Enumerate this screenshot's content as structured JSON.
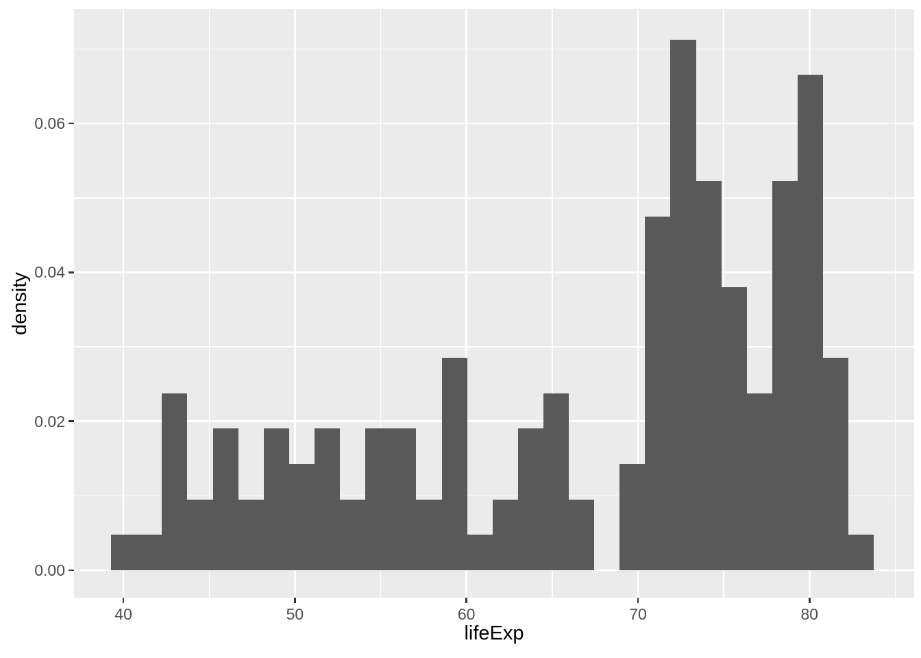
{
  "chart_data": {
    "type": "bar",
    "subtype": "density-histogram",
    "title": "",
    "xlabel": "lifeExp",
    "ylabel": "density",
    "x_tick_labels": [
      "40",
      "50",
      "60",
      "70",
      "80"
    ],
    "x_tick_values": [
      40,
      50,
      60,
      70,
      80
    ],
    "x_minor_ticks": [
      45,
      55,
      65,
      75,
      85
    ],
    "y_tick_labels": [
      "0.00",
      "0.02",
      "0.04",
      "0.06"
    ],
    "y_tick_values": [
      0.0,
      0.02,
      0.04,
      0.06
    ],
    "y_minor_ticks": [
      0.01,
      0.03,
      0.05,
      0.07
    ],
    "xlim": [
      37.12,
      86.1
    ],
    "ylim": [
      -0.0037,
      0.0754
    ],
    "grid": true,
    "legend": false,
    "bins": {
      "start": 39.284,
      "width": 1.4824,
      "counts": [
        1,
        1,
        5,
        2,
        4,
        2,
        4,
        3,
        4,
        2,
        4,
        4,
        2,
        6,
        1,
        2,
        4,
        5,
        2,
        0,
        3,
        10,
        15,
        11,
        8,
        5,
        11,
        14,
        6,
        1
      ],
      "densities": [
        0.00475,
        0.00475,
        0.02376,
        0.0095,
        0.01901,
        0.0095,
        0.01901,
        0.01425,
        0.01901,
        0.0095,
        0.01901,
        0.01901,
        0.0095,
        0.02851,
        0.00475,
        0.0095,
        0.01901,
        0.02376,
        0.0095,
        0,
        0.01425,
        0.04751,
        0.07127,
        0.05226,
        0.03801,
        0.02376,
        0.05226,
        0.06652,
        0.02851,
        0.00475
      ]
    }
  },
  "style": {
    "figure_bg": "#FFFFFF",
    "panel_bg": "#EBEBEB",
    "grid_color": "#FFFFFF",
    "bar_color": "#595959",
    "tick_label_color": "#4D4D4D",
    "axis_title_color": "#000000",
    "tick_mark_color": "#333333"
  }
}
